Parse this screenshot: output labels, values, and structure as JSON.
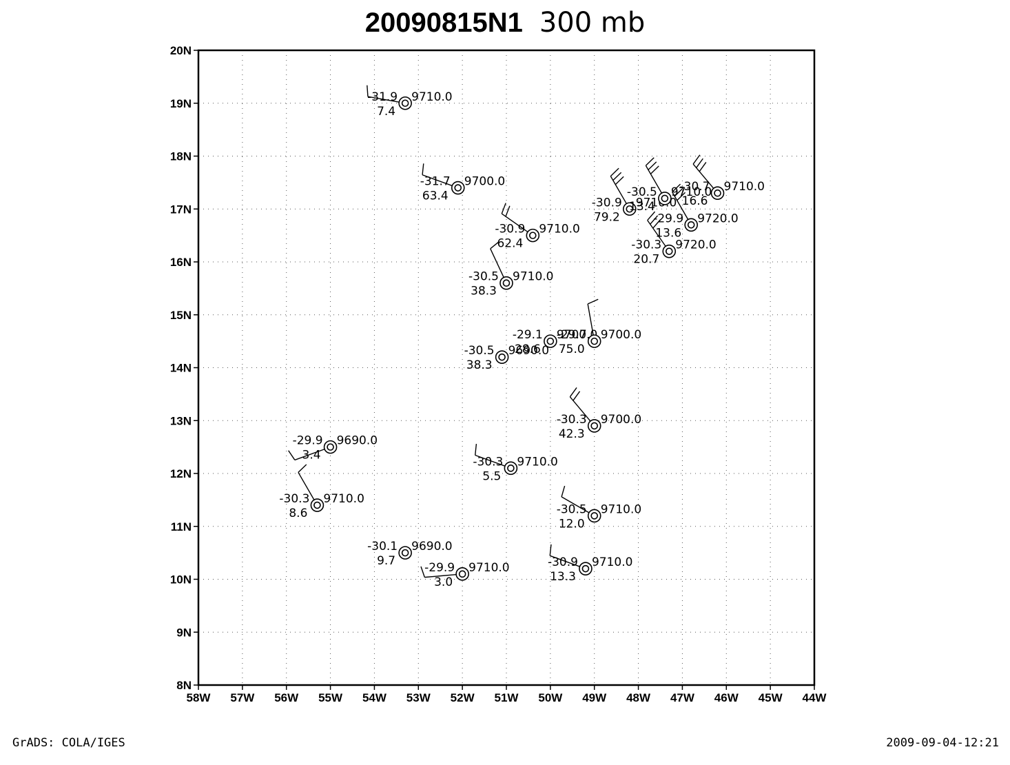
{
  "title": {
    "case_id": "20090815N1",
    "level": "300 mb"
  },
  "footer": {
    "left": "GrADS: COLA/IGES",
    "right": "2009-09-04-12:21"
  },
  "chart_data": {
    "type": "scatter",
    "title": "20090815N1 300 mb",
    "xlim": [
      -58,
      -44
    ],
    "ylim": [
      8,
      20
    ],
    "x_ticks": [
      {
        "v": -58,
        "label": "58W"
      },
      {
        "v": -57,
        "label": "57W"
      },
      {
        "v": -56,
        "label": "56W"
      },
      {
        "v": -55,
        "label": "55W"
      },
      {
        "v": -54,
        "label": "54W"
      },
      {
        "v": -53,
        "label": "53W"
      },
      {
        "v": -52,
        "label": "52W"
      },
      {
        "v": -51,
        "label": "51W"
      },
      {
        "v": -50,
        "label": "50W"
      },
      {
        "v": -49,
        "label": "49W"
      },
      {
        "v": -48,
        "label": "48W"
      },
      {
        "v": -47,
        "label": "47W"
      },
      {
        "v": -46,
        "label": "46W"
      },
      {
        "v": -45,
        "label": "45W"
      },
      {
        "v": -44,
        "label": "44W"
      }
    ],
    "y_ticks": [
      {
        "v": 8,
        "label": "8N"
      },
      {
        "v": 9,
        "label": "9N"
      },
      {
        "v": 10,
        "label": "10N"
      },
      {
        "v": 11,
        "label": "11N"
      },
      {
        "v": 12,
        "label": "12N"
      },
      {
        "v": 13,
        "label": "13N"
      },
      {
        "v": 14,
        "label": "14N"
      },
      {
        "v": 15,
        "label": "15N"
      },
      {
        "v": 16,
        "label": "16N"
      },
      {
        "v": 17,
        "label": "17N"
      },
      {
        "v": 18,
        "label": "18N"
      },
      {
        "v": 19,
        "label": "19N"
      },
      {
        "v": 20,
        "label": "20N"
      }
    ],
    "grid": "dotted",
    "marker": "double-circle station with wind barb",
    "stations": [
      {
        "lon": -53.3,
        "lat": 19.0,
        "temp": "-31.9",
        "height": "9710.0",
        "dewpt": "7.4",
        "wdir": 280,
        "wspd": 10
      },
      {
        "lon": -52.1,
        "lat": 17.4,
        "temp": "-31.7",
        "height": "9700.0",
        "dewpt": "63.4",
        "wdir": 290,
        "wspd": 10
      },
      {
        "lon": -50.4,
        "lat": 16.5,
        "temp": "-30.9",
        "height": "9710.0",
        "dewpt": "62.4",
        "wdir": 305,
        "wspd": 20
      },
      {
        "lon": -48.2,
        "lat": 17.0,
        "temp": "-30.9",
        "height": "9710.0",
        "dewpt": "79.2",
        "wdir": 330,
        "wspd": 30
      },
      {
        "lon": -47.4,
        "lat": 17.2,
        "temp": "-30.5",
        "height": "9710.0",
        "dewpt": "13.4",
        "wdir": 330,
        "wspd": 30
      },
      {
        "lon": -46.2,
        "lat": 17.3,
        "temp": "-30.7",
        "height": "9710.0",
        "dewpt": "16.6",
        "wdir": 320,
        "wspd": 30
      },
      {
        "lon": -46.8,
        "lat": 16.7,
        "temp": "-29.9",
        "height": "9720.0",
        "dewpt": "13.6",
        "wdir": 330,
        "wspd": 30
      },
      {
        "lon": -47.3,
        "lat": 16.2,
        "temp": "-30.3",
        "height": "9720.0",
        "dewpt": "20.7",
        "wdir": 325,
        "wspd": 30
      },
      {
        "lon": -51.0,
        "lat": 15.6,
        "temp": "-30.5",
        "height": "9710.0",
        "dewpt": "38.3",
        "wdir": 335,
        "wspd": 10
      },
      {
        "lon": -50.0,
        "lat": 14.5,
        "temp": "-29.1",
        "height": "9700.0",
        "dewpt": "28.6",
        "wdir": 0,
        "wspd": 0
      },
      {
        "lon": -49.0,
        "lat": 14.5,
        "temp": "-29.7",
        "height": "9700.0",
        "dewpt": "75.0",
        "wdir": 350,
        "wspd": 10
      },
      {
        "lon": -51.1,
        "lat": 14.2,
        "temp": "-30.5",
        "height": "9690.0",
        "dewpt": "38.3",
        "wdir": 0,
        "wspd": 0
      },
      {
        "lon": -49.0,
        "lat": 12.9,
        "temp": "-30.3",
        "height": "9700.0",
        "dewpt": "42.3",
        "wdir": 320,
        "wspd": 20
      },
      {
        "lon": -55.0,
        "lat": 12.5,
        "temp": "-29.9",
        "height": "9690.0",
        "dewpt": "3.4",
        "wdir": 250,
        "wspd": 10
      },
      {
        "lon": -50.9,
        "lat": 12.1,
        "temp": "-30.3",
        "height": "9710.0",
        "dewpt": "5.5",
        "wdir": 290,
        "wspd": 10
      },
      {
        "lon": -55.3,
        "lat": 11.4,
        "temp": "-30.3",
        "height": "9710.0",
        "dewpt": "8.6",
        "wdir": 330,
        "wspd": 10
      },
      {
        "lon": -49.0,
        "lat": 11.2,
        "temp": "-30.5",
        "height": "9710.0",
        "dewpt": "12.0",
        "wdir": 300,
        "wspd": 10
      },
      {
        "lon": -53.3,
        "lat": 10.5,
        "temp": "-30.1",
        "height": "9690.0",
        "dewpt": "9.7",
        "wdir": 0,
        "wspd": 0
      },
      {
        "lon": -52.0,
        "lat": 10.1,
        "temp": "-29.9",
        "height": "9710.0",
        "dewpt": "3.0",
        "wdir": 265,
        "wspd": 10
      },
      {
        "lon": -49.2,
        "lat": 10.2,
        "temp": "-30.9",
        "height": "9710.0",
        "dewpt": "13.3",
        "wdir": 290,
        "wspd": 10
      }
    ]
  }
}
